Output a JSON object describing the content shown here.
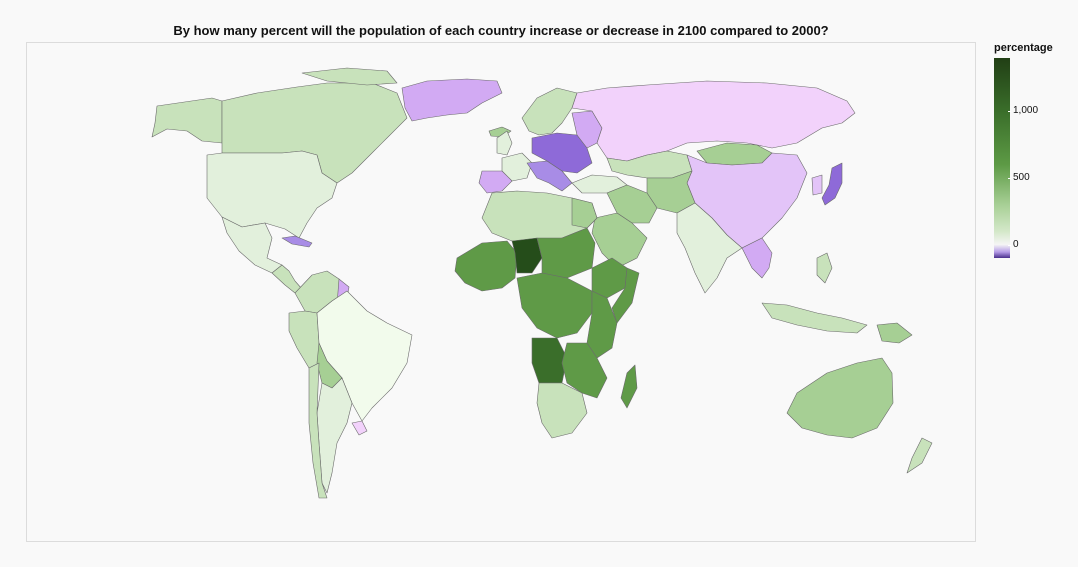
{
  "title": "By how many percent will the population of each country increase or decrease in 2100 compared to 2000?",
  "legend": {
    "title": "percentage",
    "min": -100,
    "max": 1400,
    "ticks": [
      {
        "label": "1,000",
        "value": 1000
      },
      {
        "label": "500",
        "value": 500
      },
      {
        "label": "0",
        "value": 0
      }
    ],
    "color_stops": [
      {
        "value": -100,
        "color": "#4a2f8c"
      },
      {
        "value": -50,
        "color": "#b59be6"
      },
      {
        "value": 0,
        "color": "#f5f5f5"
      },
      {
        "value": 100,
        "color": "#d4e8c9"
      },
      {
        "value": 300,
        "color": "#a7cf95"
      },
      {
        "value": 600,
        "color": "#5d9a45"
      },
      {
        "value": 1000,
        "color": "#3a6e2a"
      },
      {
        "value": 1400,
        "color": "#213f15"
      }
    ]
  },
  "colors": {
    "very_dark_green": "#254d1a",
    "dark_green": "#3a6e2a",
    "mid_green": "#5f9a47",
    "light_green": "#a6cf94",
    "pale_green": "#c8e2bb",
    "very_pale_green": "#e2f0dc",
    "near_white_green": "#f2fbec",
    "light_pink": "#f2d2fb",
    "pink_purple": "#e3c4f8",
    "lavender": "#d2aaf3",
    "purple": "#a88ce6",
    "dark_purple": "#8e6ad8",
    "background": "#f9f9f9"
  }
}
